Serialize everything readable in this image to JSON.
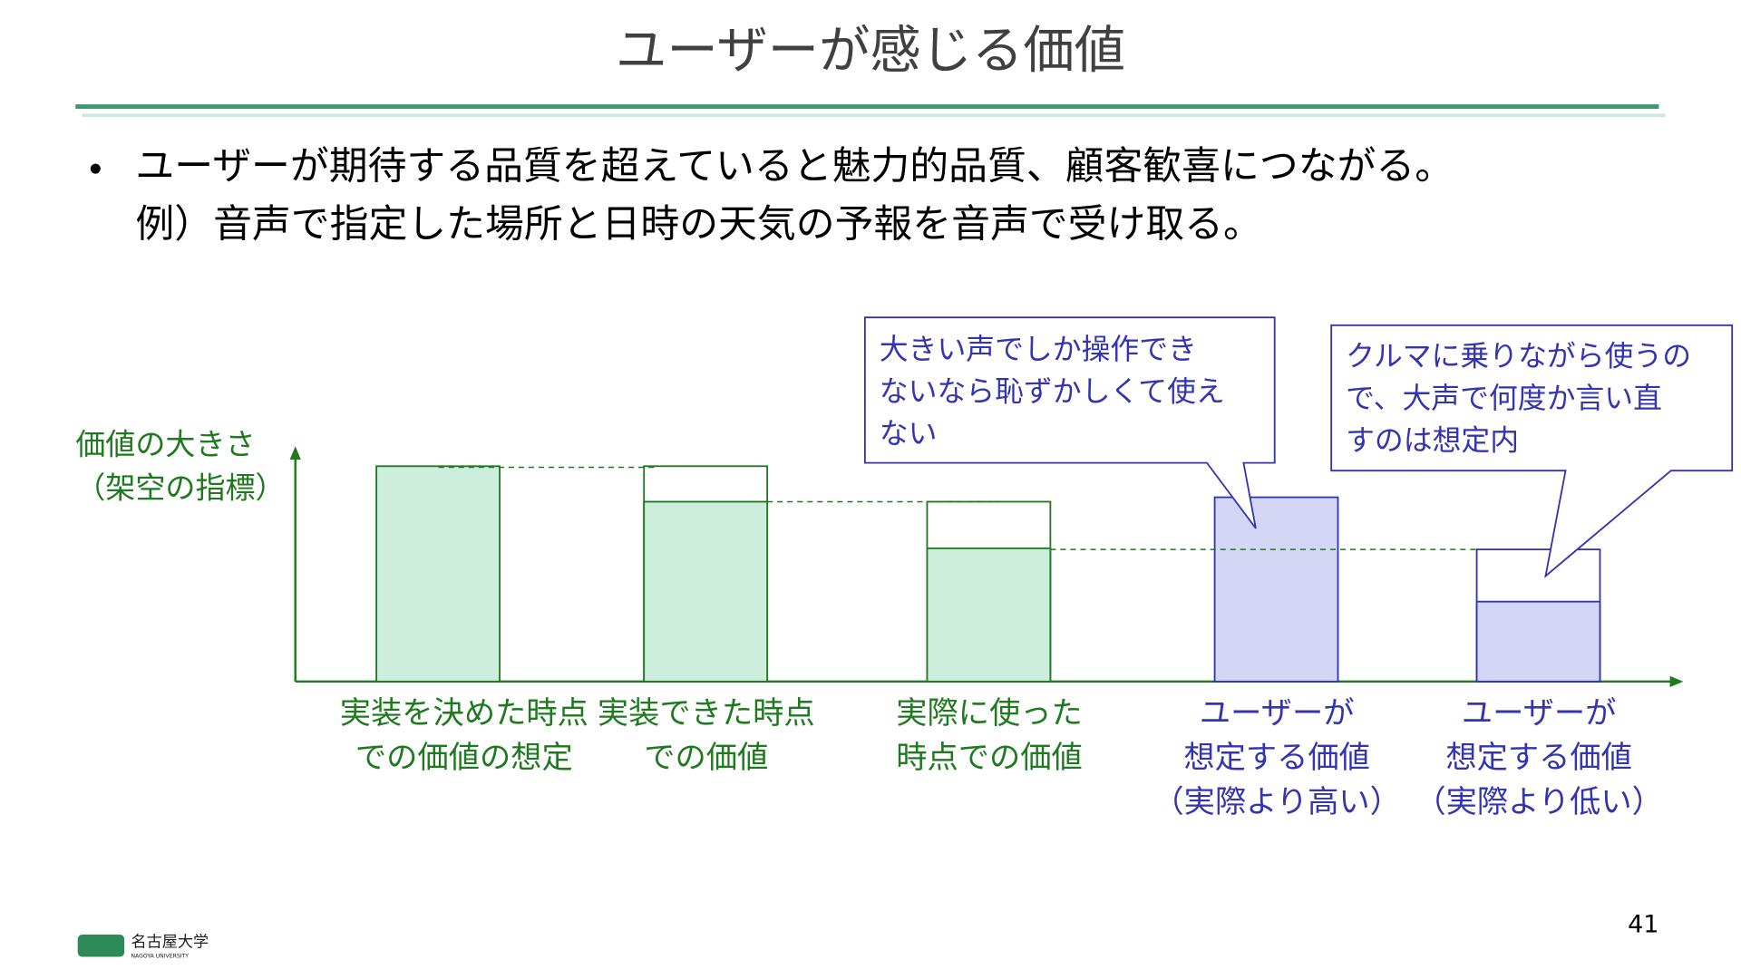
{
  "header": {
    "title": "ユーザーが感じる価値"
  },
  "body": {
    "bullet": "ユーザーが期待する品質を超えていると魅力的品質、顧客歓喜につながる。",
    "example": "例）音声で指定した場所と日時の天気の予報を音声で受け取る。"
  },
  "diagram": {
    "axis_label": [
      "価値の大きさ",
      "（架空の指標）"
    ],
    "columns": [
      {
        "label": [
          "実装を決めた時点",
          "での価値の想定"
        ]
      },
      {
        "label": [
          "実装できた時点",
          "での価値"
        ]
      },
      {
        "label": [
          "実際に使った",
          "時点での価値"
        ]
      },
      {
        "label": [
          "ユーザーが",
          "想定する価値",
          "（実際より高い）"
        ]
      },
      {
        "label": [
          "ユーザーが",
          "想定する価値",
          "（実際より低い）"
        ]
      }
    ],
    "callouts": [
      {
        "lines": [
          "大きい声でしか操作でき",
          "ないなら恥ずかしくて使え",
          "ない"
        ]
      },
      {
        "lines": [
          "クルマに乗りながら使うの",
          "で、大声で何度か言い直",
          "すのは想定内"
        ]
      }
    ]
  },
  "footer": {
    "logo": "名古屋大学",
    "logo_sub": "NAGOYA UNIVERSITY",
    "page": "41"
  }
}
